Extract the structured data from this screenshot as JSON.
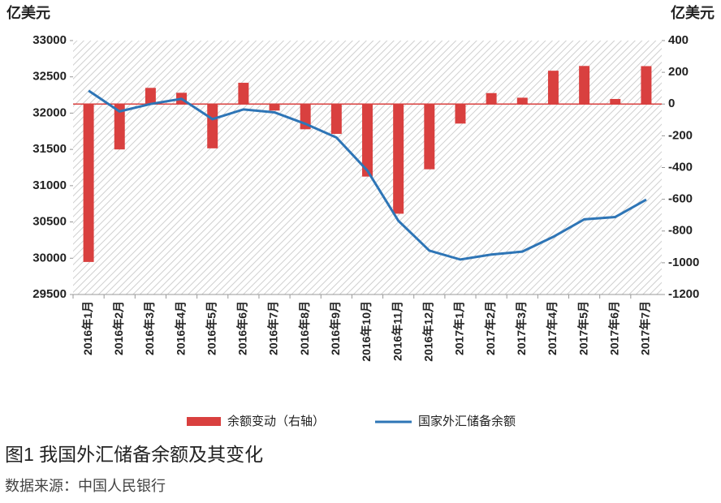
{
  "chart_data": {
    "type": "bar-line",
    "y_unit_left": "亿美元",
    "y_unit_right": "亿美元",
    "categories": [
      "2016年1月",
      "2016年2月",
      "2016年3月",
      "2016年4月",
      "2016年5月",
      "2016年6月",
      "2016年7月",
      "2016年8月",
      "2016年9月",
      "2016年10月",
      "2016年11月",
      "2016年12月",
      "2017年1月",
      "2017年2月",
      "2017年3月",
      "2017年4月",
      "2017年5月",
      "2017年6月",
      "2017年7月"
    ],
    "series": [
      {
        "name": "余额变动（右轴）",
        "type": "bar",
        "axis": "y2",
        "color": "#d9403f",
        "values": [
          -995,
          -286,
          102,
          71,
          -279,
          134,
          -41,
          -159,
          -188,
          -457,
          -691,
          -411,
          -123,
          69,
          40,
          210,
          240,
          32,
          239
        ]
      },
      {
        "name": "国家外汇储备余额",
        "type": "line",
        "axis": "y",
        "color": "#2e75b6",
        "values": [
          32309,
          32023,
          32126,
          32197,
          31917,
          32051,
          32011,
          31852,
          31664,
          31207,
          30516,
          30105,
          29982,
          30051,
          30091,
          30295,
          30536,
          30568,
          30807
        ]
      }
    ],
    "ylim": [
      29500,
      33000
    ],
    "yticks": [
      29500,
      30000,
      30500,
      31000,
      31500,
      32000,
      32500,
      33000
    ],
    "y2lim": [
      -1200,
      400
    ],
    "y2ticks": [
      -1200,
      -1000,
      -800,
      -600,
      -400,
      -200,
      0,
      200,
      400
    ],
    "caption": "图1  我国外汇储备余额及其变化",
    "source": "数据来源：中国人民银行"
  }
}
